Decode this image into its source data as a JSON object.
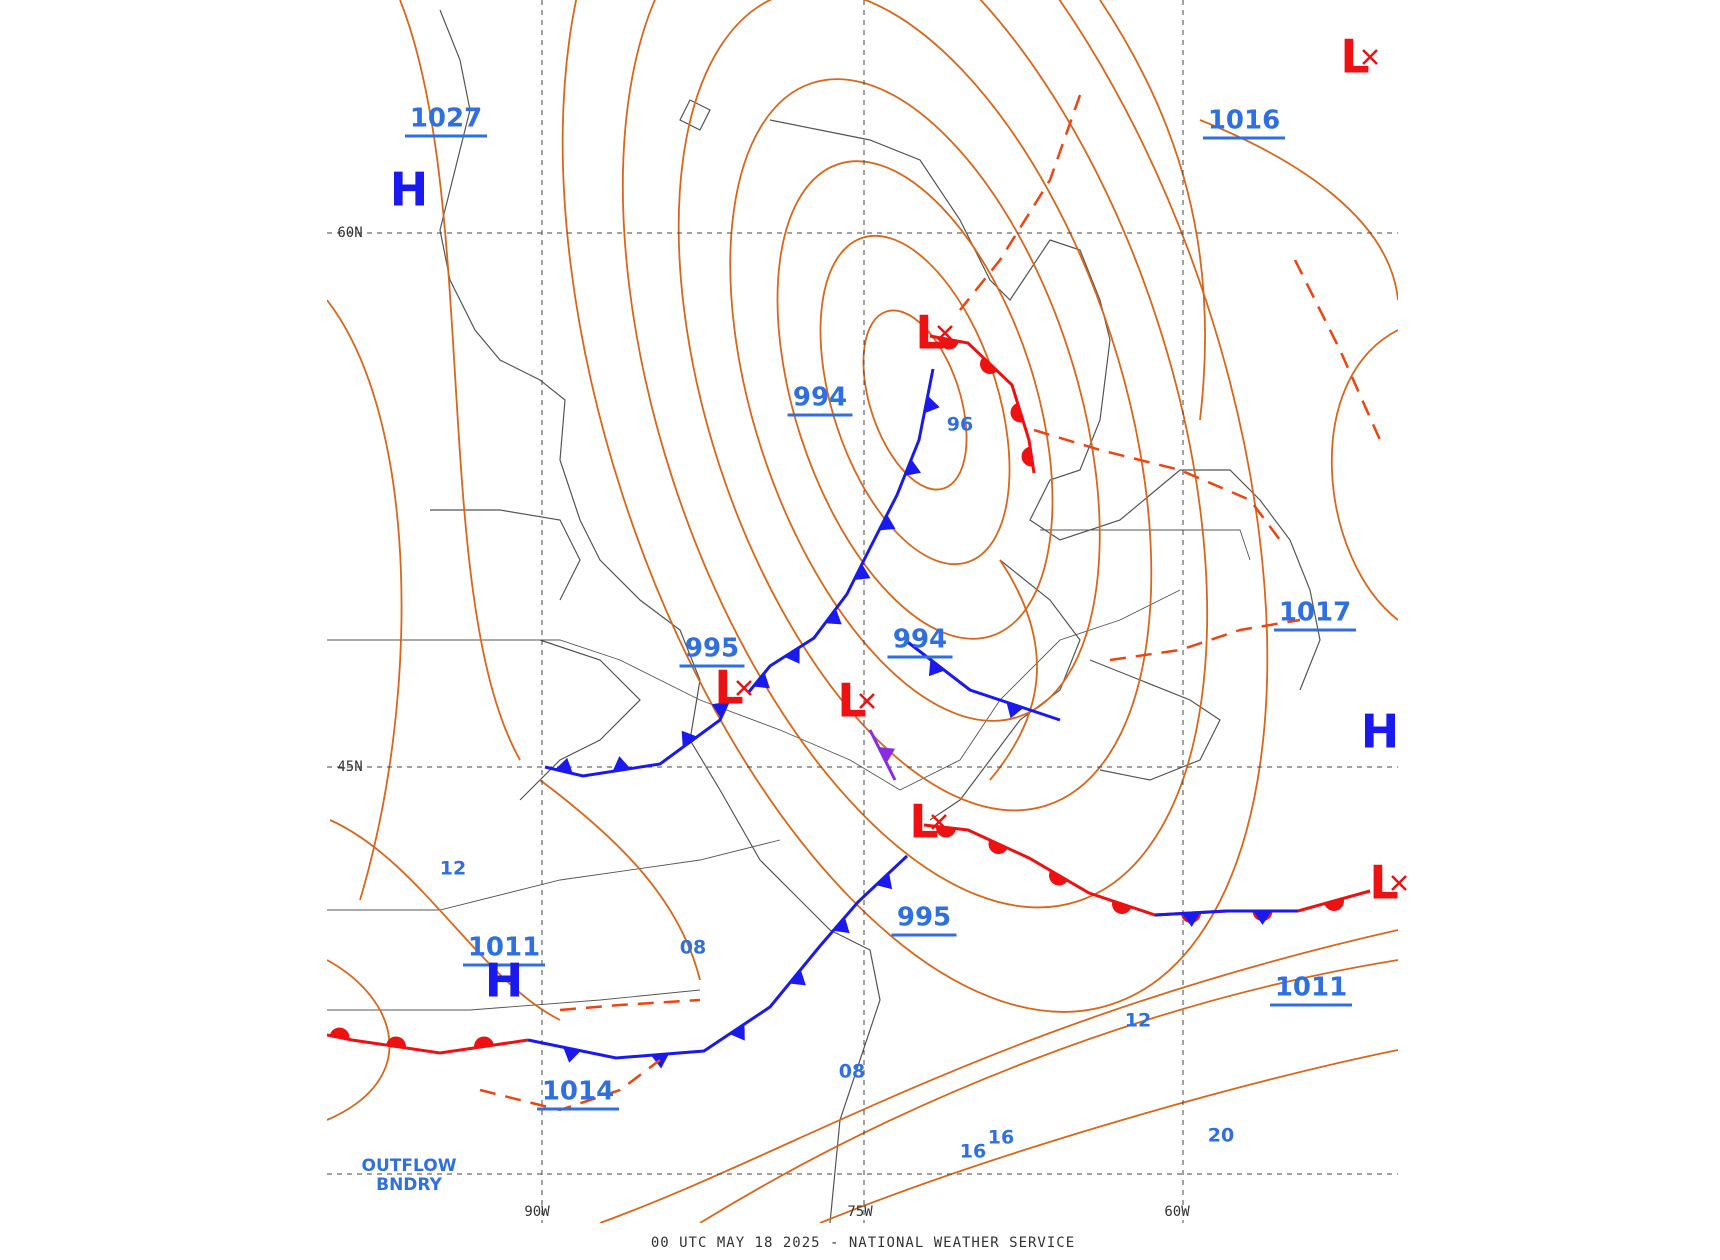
{
  "footer": "00 UTC MAY 18 2025 - NATIONAL WEATHER SERVICE",
  "pressure_centers": [
    {
      "symbol": "H",
      "label": "1027"
    },
    {
      "symbol": "L",
      "label": "1016"
    },
    {
      "symbol": "L",
      "label": "994"
    },
    {
      "symbol": "L",
      "label": "995"
    },
    {
      "symbol": "L",
      "label": "994"
    },
    {
      "symbol": "L",
      "label": "995"
    },
    {
      "symbol": "H",
      "label": "1017"
    },
    {
      "symbol": "H",
      "label": "1011"
    },
    {
      "symbol": "L",
      "label": "1011"
    },
    {
      "label": "1014"
    }
  ],
  "isobar_labels": [
    "96",
    "12",
    "08",
    "08",
    "12",
    "16",
    "16",
    "20"
  ],
  "grid_labels": [
    "60N",
    "45N",
    "90W",
    "75W",
    "60W"
  ],
  "annotation": [
    "OUTFLOW",
    "BNDRY"
  ]
}
